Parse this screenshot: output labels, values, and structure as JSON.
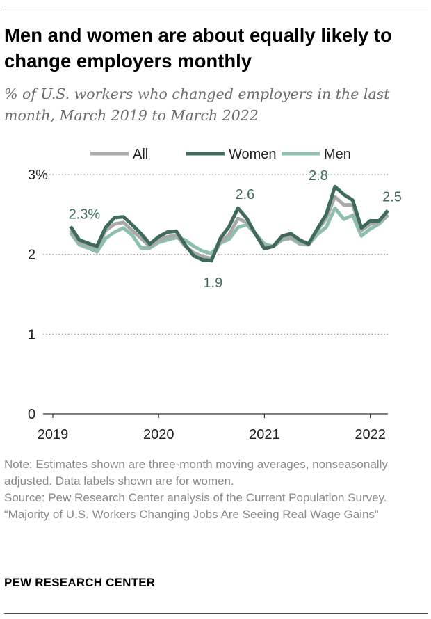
{
  "header": {
    "title": "Men and women are about equally likely to change employers monthly",
    "subtitle": "% of U.S. workers who changed employers in the last month, March 2019 to March 2022"
  },
  "footer": {
    "note": "Note: Estimates shown are three-month moving averages, nonseasonally adjusted. Data labels shown are for women.",
    "source": "Source: Pew Research Center analysis of the Current Population Survey.",
    "report": "“Majority of U.S. Workers Changing Jobs Are Seeing Real Wage Gains”",
    "credit": "PEW RESEARCH CENTER"
  },
  "chart_data": {
    "type": "line",
    "title": "",
    "xlabel": "",
    "ylabel": "",
    "x_unit": "month",
    "x_ticks": [
      {
        "label": "2019",
        "x": "2019-01"
      },
      {
        "label": "2020",
        "x": "2020-01"
      },
      {
        "label": "2021",
        "x": "2021-01"
      },
      {
        "label": "2022",
        "x": "2022-01"
      }
    ],
    "xlim": [
      "2019-01",
      "2022-03"
    ],
    "ylim": [
      0,
      3
    ],
    "y_ticks": [
      {
        "value": 0,
        "label": "0"
      },
      {
        "value": 1,
        "label": "1"
      },
      {
        "value": 2,
        "label": "2"
      },
      {
        "value": 3,
        "label": "3%"
      }
    ],
    "grid": true,
    "legend_position": "top",
    "x": [
      "2019-03",
      "2019-04",
      "2019-05",
      "2019-06",
      "2019-07",
      "2019-08",
      "2019-09",
      "2019-10",
      "2019-11",
      "2019-12",
      "2020-01",
      "2020-02",
      "2020-03",
      "2020-04",
      "2020-05",
      "2020-06",
      "2020-07",
      "2020-08",
      "2020-09",
      "2020-10",
      "2020-11",
      "2020-12",
      "2021-01",
      "2021-02",
      "2021-03",
      "2021-04",
      "2021-05",
      "2021-06",
      "2021-07",
      "2021-08",
      "2021-09",
      "2021-10",
      "2021-11",
      "2021-12",
      "2022-01",
      "2022-02",
      "2022-03"
    ],
    "series": [
      {
        "name": "All",
        "color": "#a9a9a9",
        "values": [
          2.3,
          2.15,
          2.12,
          2.08,
          2.3,
          2.38,
          2.4,
          2.3,
          2.2,
          2.1,
          2.18,
          2.22,
          2.24,
          2.1,
          2.02,
          1.97,
          1.95,
          2.15,
          2.25,
          2.45,
          2.4,
          2.25,
          2.1,
          2.1,
          2.2,
          2.22,
          2.15,
          2.12,
          2.3,
          2.45,
          2.72,
          2.62,
          2.62,
          2.3,
          2.38,
          2.4,
          2.5
        ]
      },
      {
        "name": "Women",
        "color": "#3e6b5e",
        "values": [
          2.35,
          2.18,
          2.14,
          2.1,
          2.34,
          2.46,
          2.47,
          2.37,
          2.26,
          2.13,
          2.22,
          2.28,
          2.29,
          2.12,
          1.98,
          1.93,
          1.92,
          2.2,
          2.35,
          2.58,
          2.45,
          2.25,
          2.07,
          2.1,
          2.23,
          2.26,
          2.18,
          2.13,
          2.32,
          2.5,
          2.85,
          2.75,
          2.68,
          2.33,
          2.42,
          2.42,
          2.55
        ]
      },
      {
        "name": "Men",
        "color": "#8ebfae",
        "values": [
          2.27,
          2.12,
          2.08,
          2.03,
          2.2,
          2.28,
          2.33,
          2.24,
          2.08,
          2.08,
          2.15,
          2.18,
          2.21,
          2.18,
          2.1,
          2.04,
          2.01,
          2.14,
          2.19,
          2.34,
          2.37,
          2.26,
          2.13,
          2.1,
          2.18,
          2.2,
          2.13,
          2.12,
          2.25,
          2.34,
          2.58,
          2.44,
          2.49,
          2.23,
          2.32,
          2.38,
          2.49
        ]
      }
    ],
    "annotations": [
      {
        "series": "Women",
        "x": "2019-03",
        "y": 2.35,
        "label": "2.3%"
      },
      {
        "series": "Women",
        "x": "2020-07",
        "y": 1.92,
        "label": "1.9"
      },
      {
        "series": "Women",
        "x": "2020-10",
        "y": 2.58,
        "label": "2.6"
      },
      {
        "series": "Women",
        "x": "2021-09",
        "y": 2.85,
        "label": "2.8"
      },
      {
        "series": "Women",
        "x": "2022-03",
        "y": 2.55,
        "label": "2.5"
      }
    ],
    "annotation_color": "#3e6b5e"
  }
}
